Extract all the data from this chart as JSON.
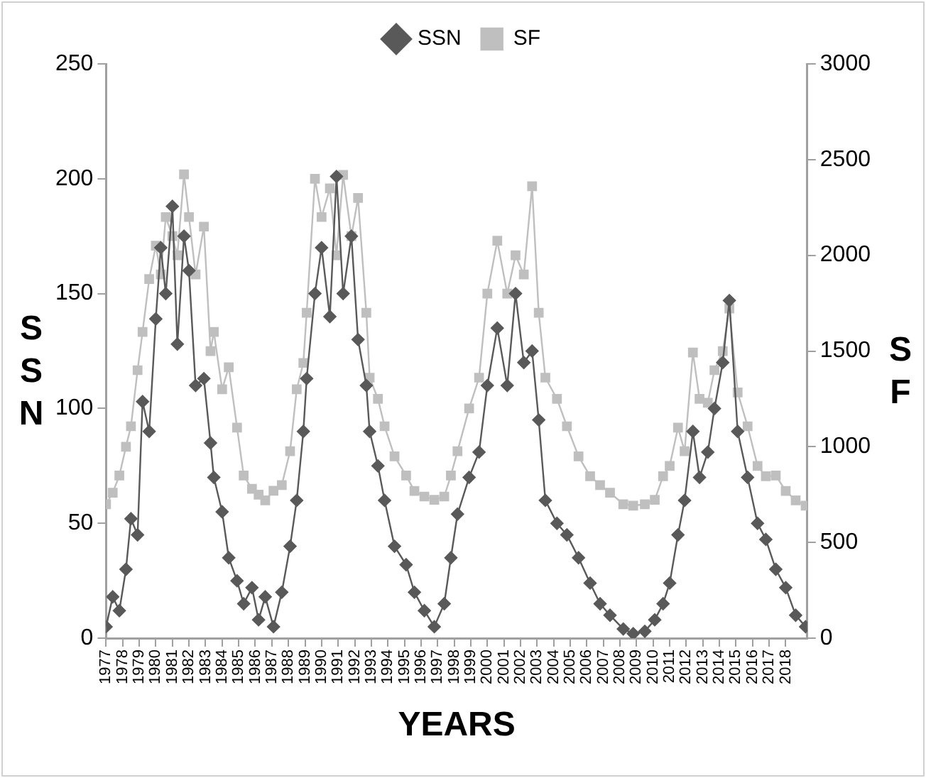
{
  "chart_data": {
    "type": "line",
    "xlabel": "YEARS",
    "ylabel": "SSN",
    "y2label": "SF",
    "x": [
      1977.0,
      1977.4,
      1977.8,
      1978.2,
      1978.5,
      1978.9,
      1979.2,
      1979.6,
      1980.0,
      1980.3,
      1980.6,
      1981.0,
      1981.3,
      1981.7,
      1982.0,
      1982.4,
      1982.9,
      1983.3,
      1983.5,
      1984.0,
      1984.4,
      1984.9,
      1985.3,
      1985.8,
      1986.2,
      1986.6,
      1987.1,
      1987.6,
      1988.1,
      1988.5,
      1988.9,
      1989.1,
      1989.6,
      1990.0,
      1990.5,
      1990.9,
      1991.3,
      1991.8,
      1992.2,
      1992.7,
      1992.9,
      1993.4,
      1993.8,
      1994.4,
      1995.1,
      1995.6,
      1996.2,
      1996.8,
      1997.4,
      1997.8,
      1998.2,
      1998.9,
      1999.5,
      2000.0,
      2000.6,
      2001.2,
      2001.7,
      2002.2,
      2002.7,
      2003.1,
      2003.5,
      2004.2,
      2004.8,
      2005.5,
      2006.2,
      2006.8,
      2007.4,
      2008.2,
      2008.8,
      2009.5,
      2010.1,
      2010.6,
      2011.0,
      2011.5,
      2011.9,
      2012.4,
      2012.8,
      2013.3,
      2013.7,
      2014.2,
      2014.6,
      2015.1,
      2015.7,
      2016.3,
      2016.8,
      2017.4,
      2018.0,
      2018.6,
      2019.2
    ],
    "series": [
      {
        "name": "SSN",
        "color": "#595959",
        "marker": "diamond",
        "values": [
          5,
          18,
          12,
          30,
          52,
          45,
          103,
          90,
          139,
          170,
          150,
          188,
          128,
          175,
          160,
          110,
          113,
          85,
          70,
          55,
          35,
          25,
          15,
          22,
          8,
          18,
          5,
          20,
          40,
          60,
          90,
          113,
          150,
          170,
          140,
          201,
          150,
          175,
          130,
          110,
          90,
          75,
          60,
          40,
          32,
          20,
          12,
          5,
          15,
          35,
          54,
          70,
          81,
          110,
          135,
          110,
          150,
          120,
          125,
          95,
          60,
          50,
          45,
          35,
          24,
          15,
          10,
          4,
          2,
          3,
          8,
          15,
          24,
          45,
          60,
          90,
          70,
          81,
          100,
          120,
          147,
          90,
          70,
          50,
          43,
          30,
          22,
          10,
          5
        ]
      },
      {
        "name": "SF",
        "color": "#bfbfbf",
        "marker": "square",
        "axis": "y2",
        "values": [
          700,
          760,
          850,
          1000,
          1107,
          1400,
          1600,
          1876,
          2050,
          1900,
          2200,
          2100,
          2000,
          2423,
          2200,
          1900,
          2150,
          1500,
          1600,
          1300,
          1415,
          1100,
          850,
          780,
          750,
          720,
          770,
          800,
          977,
          1300,
          1438,
          1700,
          2400,
          2200,
          2350,
          2000,
          2420,
          2100,
          2300,
          1700,
          1361,
          1250,
          1107,
          950,
          850,
          769,
          740,
          723,
          740,
          850,
          977,
          1200,
          1361,
          1800,
          2076,
          1800,
          2000,
          1900,
          2361,
          1700,
          1361,
          1250,
          1107,
          950,
          846,
          800,
          760,
          700,
          692,
          700,
          723,
          846,
          900,
          1100,
          977,
          1492,
          1250,
          1230,
          1400,
          1500,
          1722,
          1284,
          1107,
          900,
          846,
          850,
          769,
          720,
          692
        ]
      }
    ],
    "xlim": [
      1977,
      2019.3
    ],
    "xticks": [
      1977,
      1978,
      1979,
      1980,
      1981,
      1982,
      1983,
      1984,
      1985,
      1986,
      1987,
      1988,
      1989,
      1990,
      1991,
      1992,
      1993,
      1994,
      1995,
      1996,
      1997,
      1998,
      1999,
      2000,
      2001,
      2002,
      2003,
      2004,
      2005,
      2006,
      2007,
      2008,
      2009,
      2010,
      2011,
      2012,
      2013,
      2014,
      2015,
      2016,
      2017,
      2018
    ],
    "ylim": [
      0,
      250
    ],
    "yticks": [
      0,
      50,
      100,
      150,
      200,
      250
    ],
    "y2lim": [
      0,
      3000
    ],
    "y2ticks": [
      0,
      500,
      1000,
      1500,
      2000,
      2500,
      3000
    ],
    "grid": false,
    "legend": "top"
  }
}
